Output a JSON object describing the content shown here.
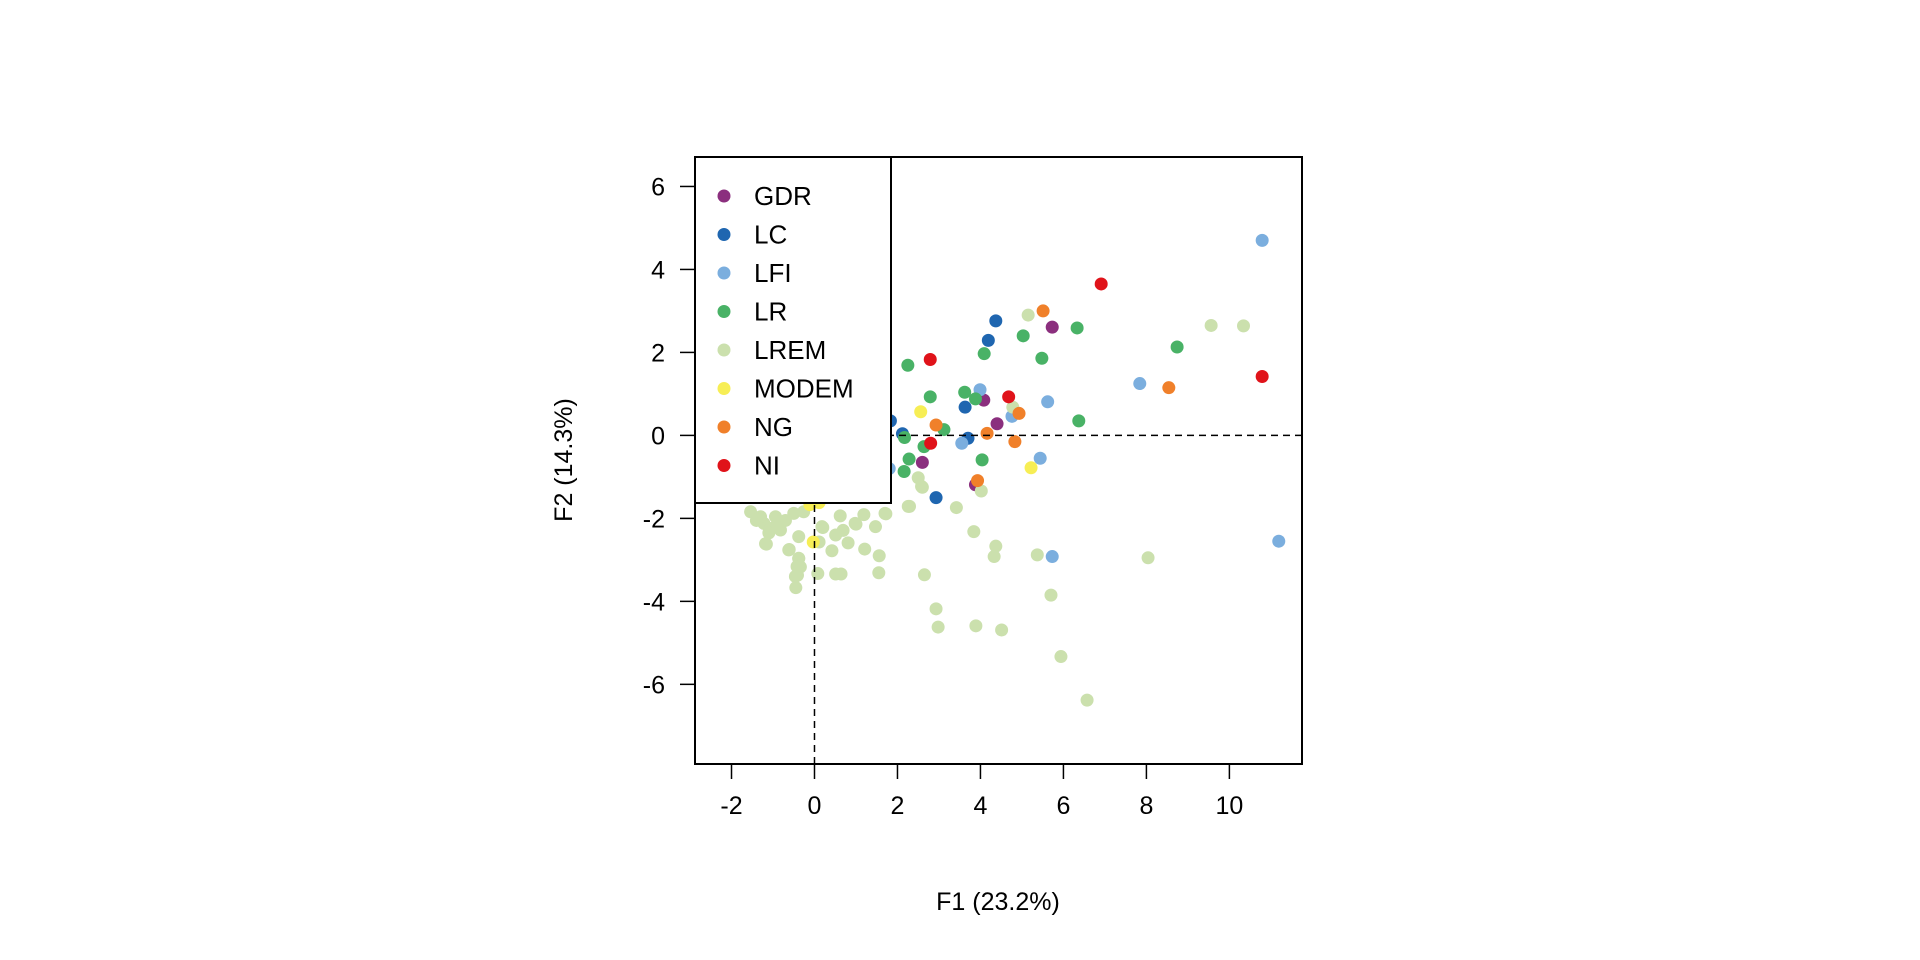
{
  "chart_data": {
    "type": "scatter",
    "title": "",
    "xlabel": "F1 (23.2%)",
    "ylabel": "F2 (14.3%)",
    "xlim": [
      -2.88,
      11.75
    ],
    "ylim": [
      -7.92,
      6.71
    ],
    "xticks": [
      -2,
      0,
      2,
      4,
      6,
      8,
      10
    ],
    "xtick_labels": [
      "-2",
      "0",
      "2",
      "4",
      "6",
      "8",
      "10"
    ],
    "yticks": [
      -6,
      -4,
      -2,
      0,
      2,
      4,
      6
    ],
    "ytick_labels": [
      "-6",
      "-4",
      "-2",
      "0",
      "2",
      "4",
      "6"
    ],
    "reference_lines": {
      "x": 0,
      "y": 0,
      "style": "dashed"
    },
    "legend_position": "top-left",
    "series": [
      {
        "name": "GDR",
        "color": "#8B2F7E",
        "points": [
          [
            5.73,
            2.61
          ],
          [
            4.08,
            0.85
          ],
          [
            4.4,
            0.28
          ],
          [
            2.6,
            -0.65
          ],
          [
            3.88,
            -1.19
          ]
        ]
      },
      {
        "name": "LC",
        "color": "#1F66B0",
        "points": [
          [
            4.37,
            2.76
          ],
          [
            4.19,
            2.29
          ],
          [
            3.63,
            0.68
          ],
          [
            2.12,
            0.04
          ],
          [
            1.83,
            0.35
          ],
          [
            3.7,
            -0.07
          ],
          [
            2.93,
            -1.5
          ]
        ]
      },
      {
        "name": "LFI",
        "color": "#7BAEDE",
        "points": [
          [
            10.79,
            4.7
          ],
          [
            7.84,
            1.25
          ],
          [
            5.62,
            0.81
          ],
          [
            3.99,
            1.1
          ],
          [
            4.76,
            0.46
          ],
          [
            3.55,
            -0.19
          ],
          [
            5.44,
            -0.55
          ],
          [
            5.73,
            -2.92
          ],
          [
            11.19,
            -2.55
          ],
          [
            1.8,
            -0.8
          ]
        ]
      },
      {
        "name": "LR",
        "color": "#49B266",
        "points": [
          [
            6.33,
            2.59
          ],
          [
            5.03,
            2.4
          ],
          [
            4.09,
            1.97
          ],
          [
            5.48,
            1.86
          ],
          [
            8.74,
            2.13
          ],
          [
            2.25,
            1.69
          ],
          [
            2.79,
            0.93
          ],
          [
            3.62,
            1.04
          ],
          [
            3.88,
            0.88
          ],
          [
            3.12,
            0.14
          ],
          [
            6.37,
            0.35
          ],
          [
            2.17,
            -0.05
          ],
          [
            2.64,
            -0.27
          ],
          [
            2.28,
            -0.57
          ],
          [
            4.04,
            -0.59
          ],
          [
            2.16,
            -0.87
          ]
        ]
      },
      {
        "name": "LREM",
        "color": "#CBE0AD",
        "points": [
          [
            5.15,
            2.9
          ],
          [
            9.56,
            2.65
          ],
          [
            10.34,
            2.64
          ],
          [
            4.78,
            0.68
          ],
          [
            2.5,
            -1.02
          ],
          [
            2.6,
            -1.25
          ],
          [
            4.02,
            -1.34
          ],
          [
            2.29,
            -1.71
          ],
          [
            3.42,
            -1.74
          ],
          [
            1.72,
            -1.89
          ],
          [
            1.19,
            -1.91
          ],
          [
            0.62,
            -1.94
          ],
          [
            1.0,
            -2.14
          ],
          [
            1.47,
            -2.2
          ],
          [
            0.69,
            -2.29
          ],
          [
            0.2,
            -2.22
          ],
          [
            0.51,
            -2.4
          ],
          [
            3.84,
            -2.32
          ],
          [
            4.37,
            -2.67
          ],
          [
            4.33,
            -2.92
          ],
          [
            5.37,
            -2.88
          ],
          [
            8.04,
            -2.95
          ],
          [
            0.81,
            -2.59
          ],
          [
            0.11,
            -2.57
          ],
          [
            -1.16,
            -2.62
          ],
          [
            -0.61,
            -2.75
          ],
          [
            0.42,
            -2.78
          ],
          [
            1.21,
            -2.74
          ],
          [
            1.56,
            -2.9
          ],
          [
            -0.38,
            -2.97
          ],
          [
            -0.34,
            -3.17
          ],
          [
            -0.41,
            -3.37
          ],
          [
            0.08,
            -3.33
          ],
          [
            0.51,
            -3.34
          ],
          [
            0.64,
            -3.34
          ],
          [
            1.55,
            -3.31
          ],
          [
            2.65,
            -3.36
          ],
          [
            -0.45,
            -3.67
          ],
          [
            5.7,
            -3.85
          ],
          [
            2.93,
            -4.18
          ],
          [
            2.98,
            -4.62
          ],
          [
            3.89,
            -4.59
          ],
          [
            4.51,
            -4.69
          ],
          [
            5.94,
            -5.33
          ],
          [
            6.57,
            -6.38
          ],
          [
            -1.54,
            -1.84
          ],
          [
            -1.22,
            -2.12
          ],
          [
            -1.06,
            -2.24
          ],
          [
            -0.82,
            -2.28
          ],
          [
            -1.3,
            -1.96
          ],
          [
            -0.94,
            -1.96
          ],
          [
            -0.5,
            -1.88
          ],
          [
            -0.26,
            -1.84
          ],
          [
            -1.18,
            -2.61
          ],
          [
            -0.62,
            -2.76
          ],
          [
            -0.38,
            -2.44
          ],
          [
            -0.38,
            -2.96
          ],
          [
            -0.42,
            -3.16
          ],
          [
            -0.46,
            -3.4
          ],
          [
            -1.4,
            -2.05
          ],
          [
            -1.1,
            -2.35
          ],
          [
            -0.7,
            -2.05
          ],
          [
            -0.9,
            -2.15
          ],
          [
            0.18,
            -2.2
          ],
          [
            0.98,
            -2.12
          ],
          [
            2.26,
            -1.71
          ],
          [
            2.58,
            -1.23
          ],
          [
            1.7,
            -1.88
          ]
        ]
      },
      {
        "name": "MODEM",
        "color": "#F7EE55",
        "points": [
          [
            2.56,
            0.57
          ],
          [
            5.22,
            -0.78
          ],
          [
            -0.03,
            -2.57
          ],
          [
            -0.11,
            -1.67
          ],
          [
            0.11,
            -1.62
          ]
        ]
      },
      {
        "name": "NG",
        "color": "#F0802A",
        "points": [
          [
            5.51,
            3.0
          ],
          [
            8.54,
            1.15
          ],
          [
            2.93,
            0.25
          ],
          [
            4.93,
            0.53
          ],
          [
            4.16,
            0.05
          ],
          [
            4.83,
            -0.15
          ],
          [
            3.93,
            -1.09
          ]
        ]
      },
      {
        "name": "NI",
        "color": "#E0131A",
        "points": [
          [
            6.91,
            3.65
          ],
          [
            2.79,
            1.83
          ],
          [
            4.68,
            0.93
          ],
          [
            2.8,
            -0.19
          ],
          [
            10.79,
            1.42
          ]
        ]
      }
    ]
  }
}
